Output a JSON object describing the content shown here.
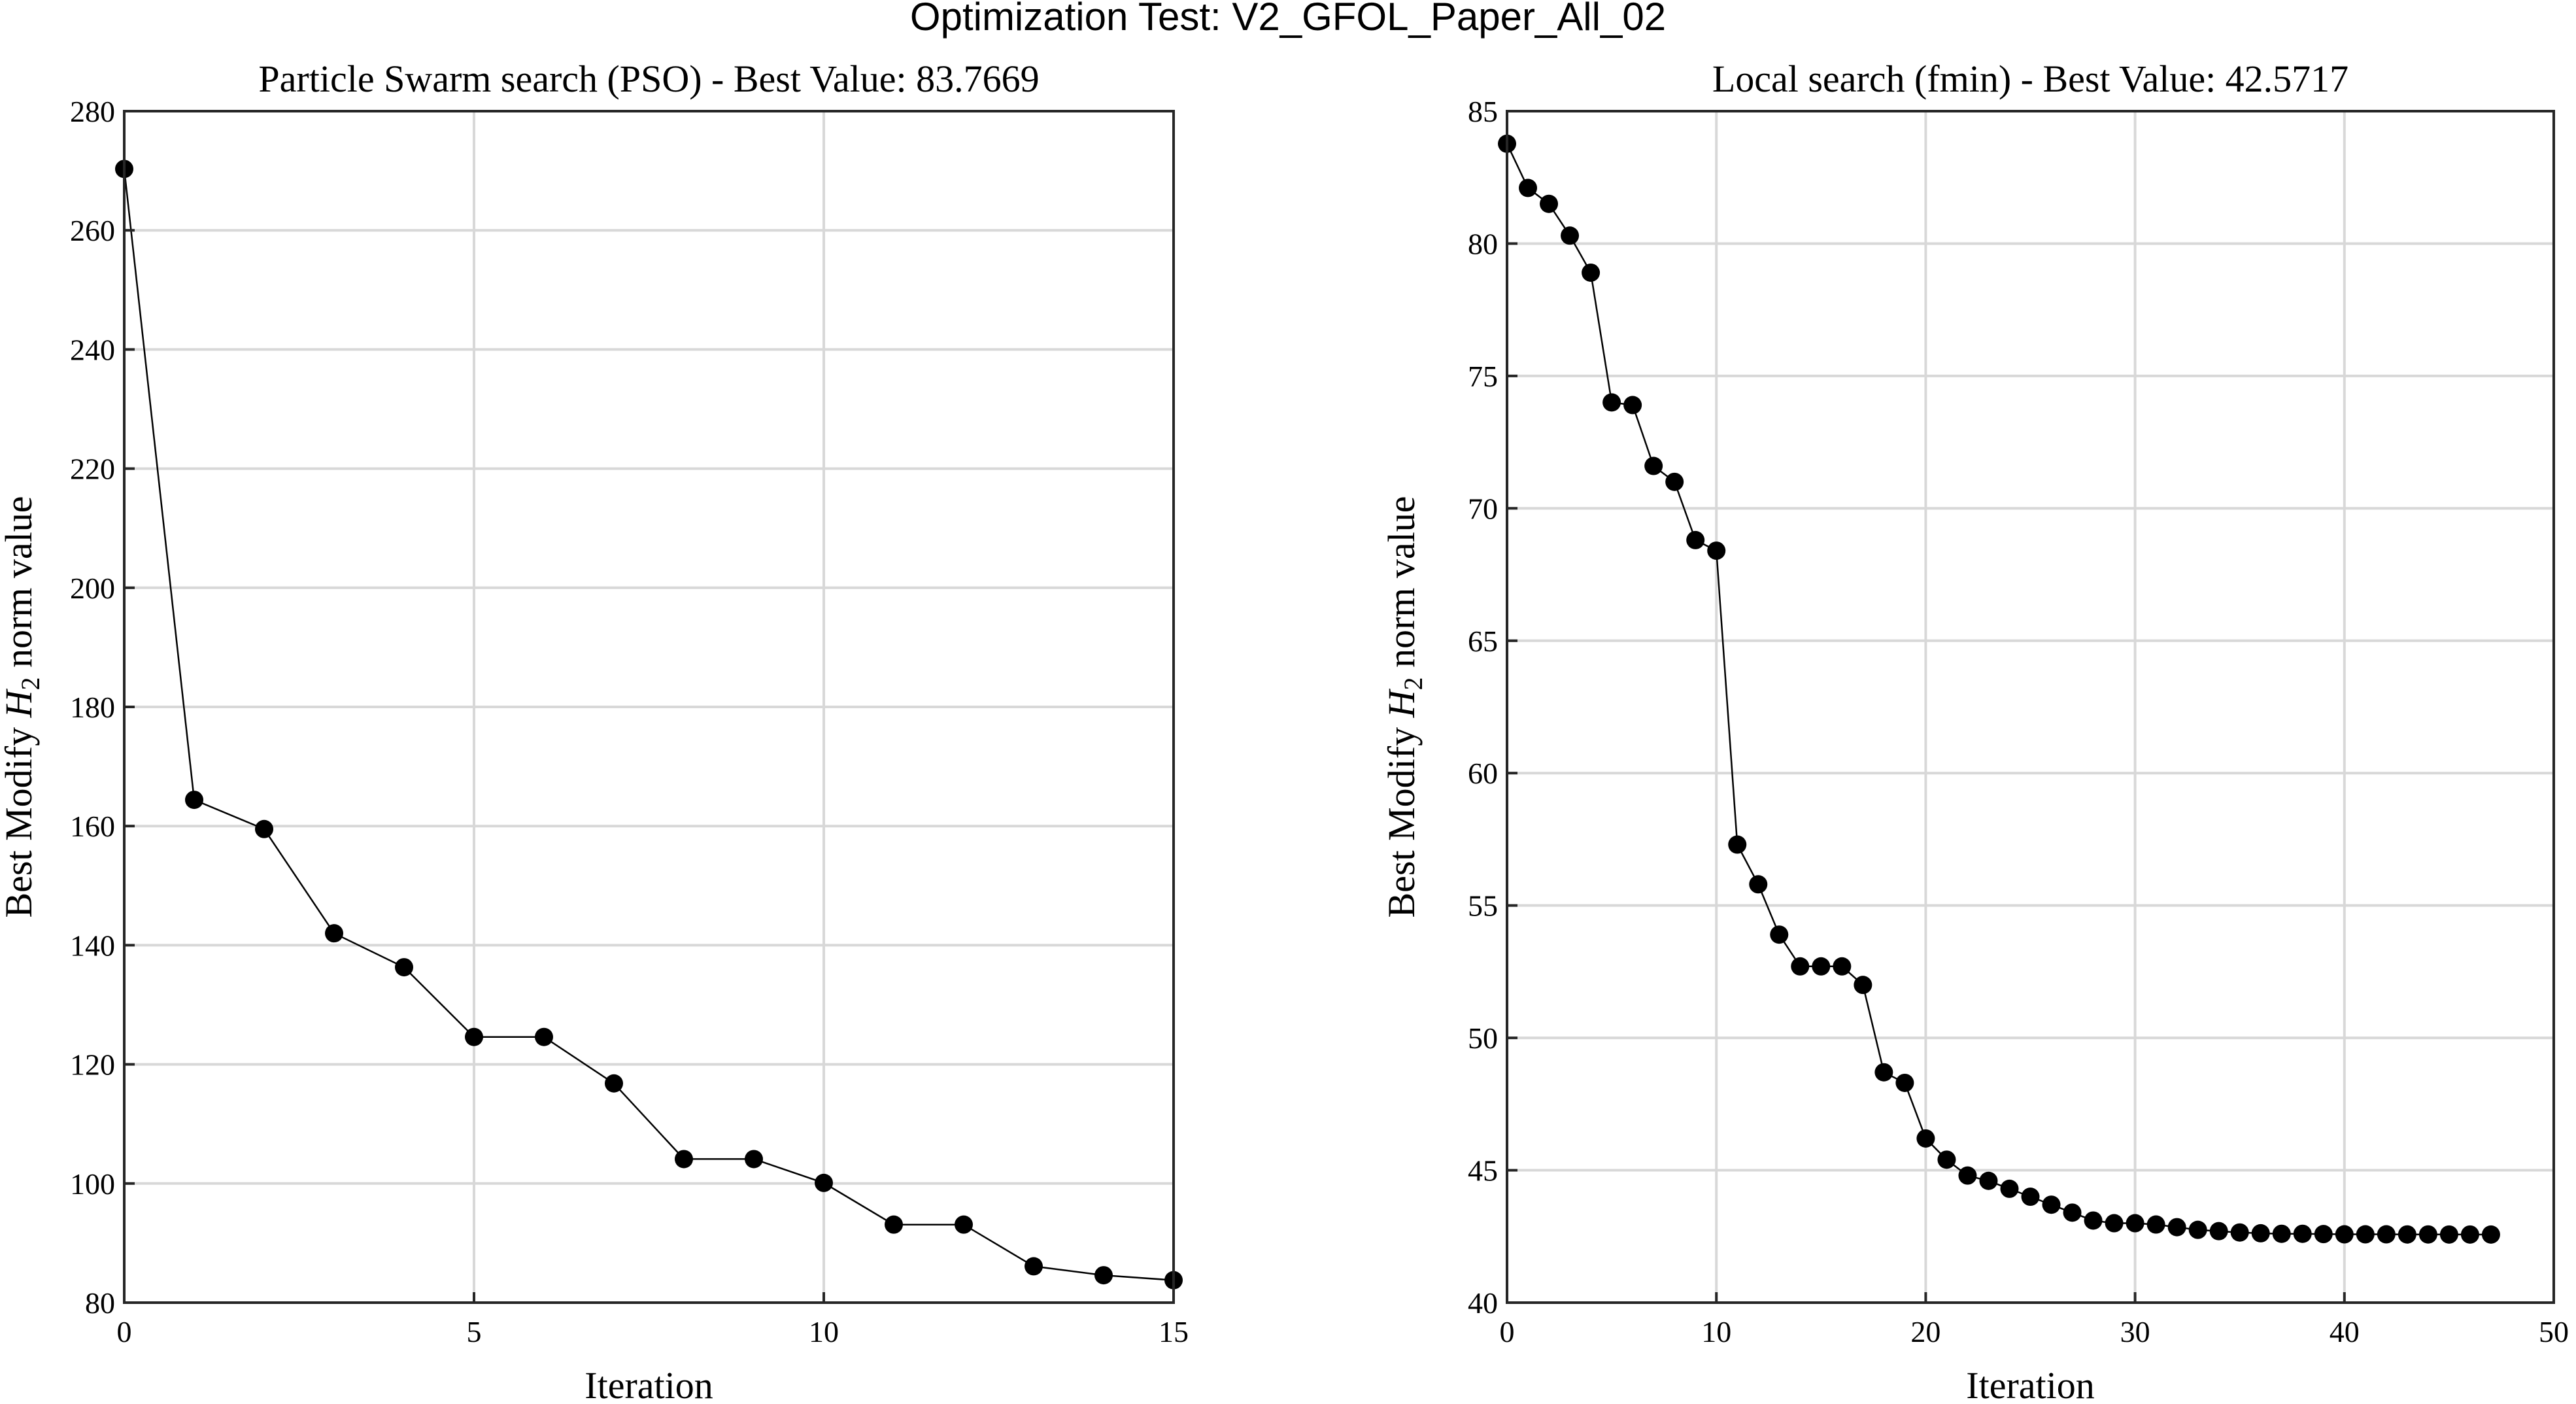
{
  "figure": {
    "suptitle": "Optimization Test: V2_GFOL_Paper_All_02"
  },
  "chart_data": [
    {
      "type": "line",
      "title": "Particle Swarm search (PSO) - Best Value: 83.7669",
      "xlabel": "Iteration",
      "ylabel": "Best Modify H2 norm value",
      "ylabel_parts": {
        "pre": "Best Modify ",
        "var": "H",
        "sub": "2",
        "post": " norm value"
      },
      "xlim": [
        0,
        15
      ],
      "ylim": [
        80,
        280
      ],
      "xticks": [
        0,
        5,
        10,
        15
      ],
      "yticks": [
        80,
        100,
        120,
        140,
        160,
        180,
        200,
        220,
        240,
        260,
        280
      ],
      "grid": true,
      "marker": "filled-circle",
      "x": [
        0,
        1,
        2,
        3,
        4,
        5,
        6,
        7,
        8,
        9,
        10,
        11,
        12,
        13,
        14,
        15
      ],
      "y": [
        270.3,
        164.4,
        159.5,
        142.0,
        136.3,
        124.6,
        124.6,
        116.8,
        104.1,
        104.1,
        100.1,
        93.1,
        93.1,
        86.1,
        84.6,
        83.7669
      ]
    },
    {
      "type": "line",
      "title": "Local search (fmin) - Best Value: 42.5717",
      "xlabel": "Iteration",
      "ylabel": "Best Modify H2 norm value",
      "ylabel_parts": {
        "pre": "Best Modify ",
        "var": "H",
        "sub": "2",
        "post": " norm value"
      },
      "xlim": [
        0,
        50
      ],
      "ylim": [
        40,
        85
      ],
      "xticks": [
        0,
        10,
        20,
        30,
        40,
        50
      ],
      "yticks": [
        40,
        45,
        50,
        55,
        60,
        65,
        70,
        75,
        80,
        85
      ],
      "grid": true,
      "marker": "filled-circle",
      "x": [
        0,
        1,
        2,
        3,
        4,
        5,
        6,
        7,
        8,
        9,
        10,
        11,
        12,
        13,
        14,
        15,
        16,
        17,
        18,
        19,
        20,
        21,
        22,
        23,
        24,
        25,
        26,
        27,
        28,
        29,
        30,
        31,
        32,
        33,
        34,
        35,
        36,
        37,
        38,
        39,
        40,
        41,
        42,
        43,
        44,
        45,
        46,
        47
      ],
      "y": [
        83.77,
        82.1,
        81.5,
        80.3,
        78.9,
        74.0,
        73.9,
        71.6,
        71.0,
        68.8,
        68.4,
        57.3,
        55.8,
        53.9,
        52.7,
        52.7,
        52.7,
        52.0,
        48.7,
        48.3,
        46.2,
        45.4,
        44.8,
        44.6,
        44.3,
        44.0,
        43.7,
        43.4,
        43.1,
        43.0,
        43.0,
        42.95,
        42.85,
        42.75,
        42.7,
        42.65,
        42.62,
        42.6,
        42.6,
        42.59,
        42.58,
        42.58,
        42.58,
        42.575,
        42.575,
        42.573,
        42.572,
        42.5717
      ]
    }
  ]
}
